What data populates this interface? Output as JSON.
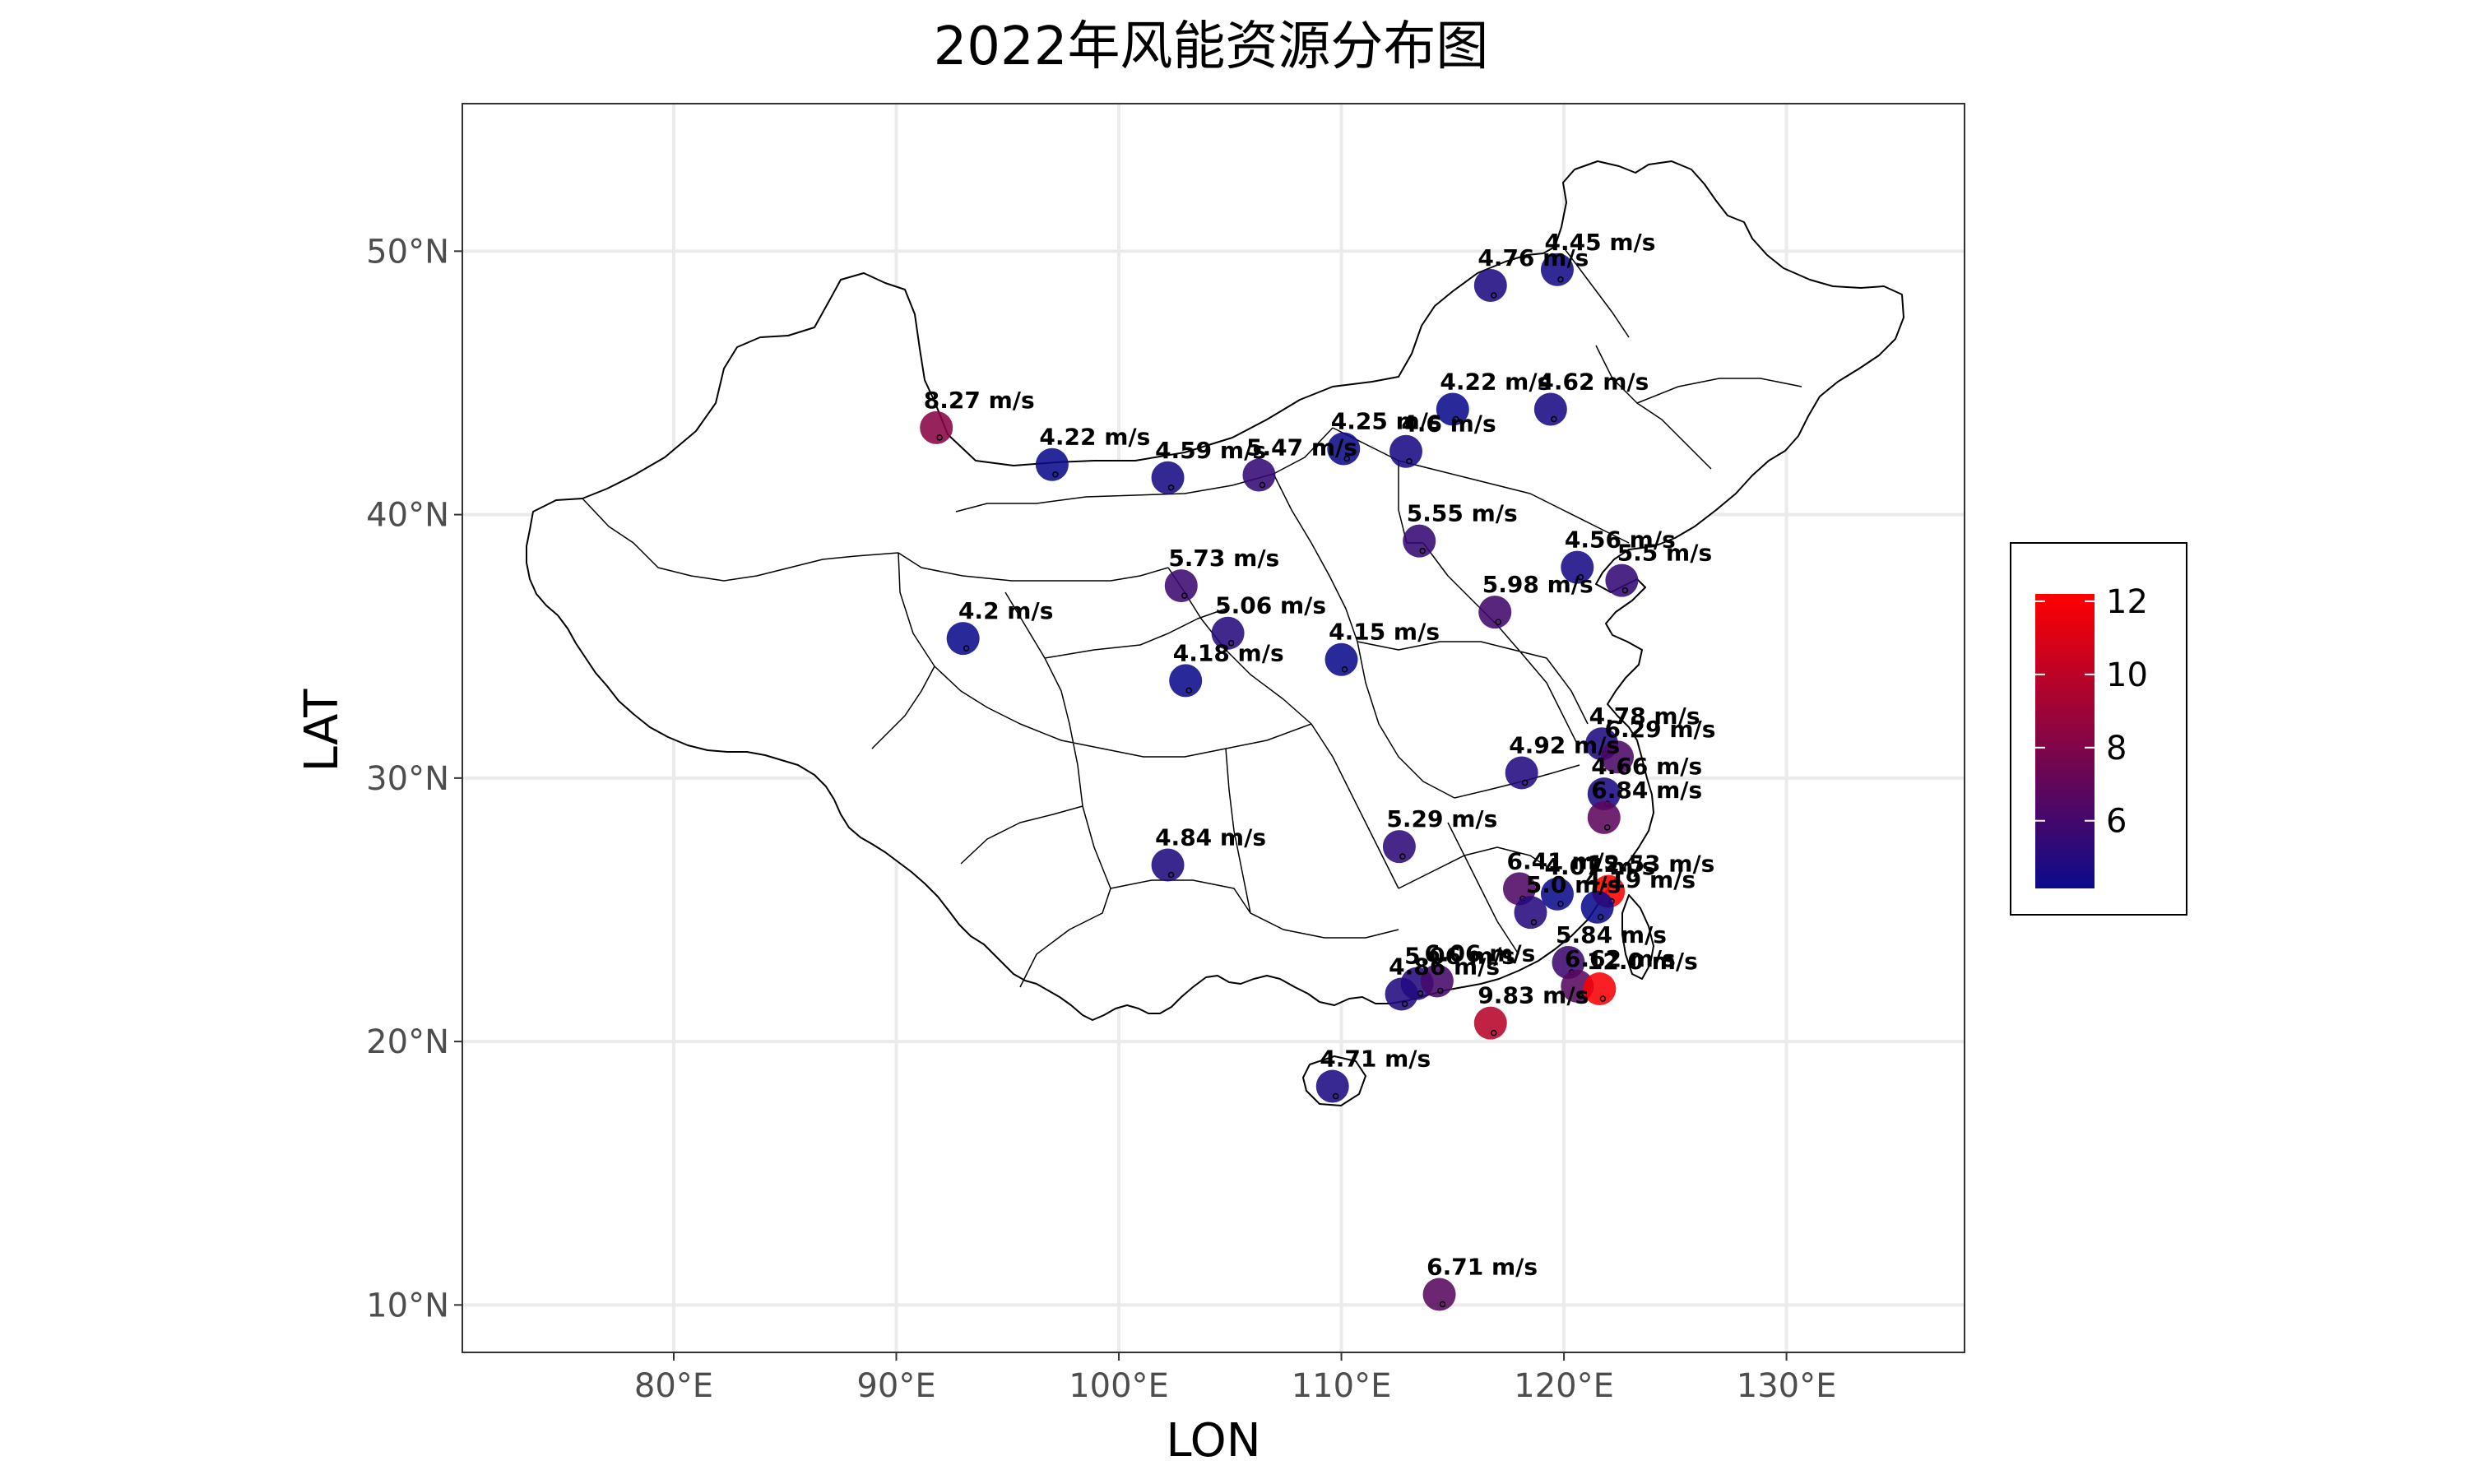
{
  "title": "2022年风能资源分布图",
  "axes": {
    "xlabel": "LON",
    "ylabel": "LAT",
    "x_ticks": [
      {
        "value": 80,
        "label": "80°E"
      },
      {
        "value": 90,
        "label": "90°E"
      },
      {
        "value": 100,
        "label": "100°E"
      },
      {
        "value": 110,
        "label": "110°E"
      },
      {
        "value": 120,
        "label": "120°E"
      },
      {
        "value": 130,
        "label": "130°E"
      }
    ],
    "y_ticks": [
      {
        "value": 10,
        "label": "10°N"
      },
      {
        "value": 20,
        "label": "20°N"
      },
      {
        "value": 30,
        "label": "30°N"
      },
      {
        "value": 40,
        "label": "40°N"
      },
      {
        "value": 50,
        "label": "50°N"
      }
    ],
    "xlim": [
      70.5,
      138
    ],
    "ylim": [
      8.2,
      55.6
    ],
    "grid": true
  },
  "legend": {
    "position": "right",
    "type": "colorbar",
    "range": [
      4.15,
      12.2
    ],
    "low_color": "#0b0b8c",
    "high_color": "#ff0000",
    "ticks": [
      {
        "value": 6,
        "label": "6"
      },
      {
        "value": 8,
        "label": "8"
      },
      {
        "value": 10,
        "label": "10"
      },
      {
        "value": 12,
        "label": "12"
      }
    ]
  },
  "unit": "m/s",
  "chart_data": {
    "type": "scatter",
    "x_field": "LON",
    "y_field": "LAT",
    "color_field": "wind_speed",
    "points": [
      {
        "lon": 91.8,
        "lat": 43.3,
        "value": 8.27,
        "label": "8.27  m/s"
      },
      {
        "lon": 97.0,
        "lat": 41.9,
        "value": 4.22,
        "label": "4.22  m/s"
      },
      {
        "lon": 102.2,
        "lat": 41.4,
        "value": 4.59,
        "label": "4.59  m/s"
      },
      {
        "lon": 106.3,
        "lat": 41.5,
        "value": 5.47,
        "label": "5.47  m/s"
      },
      {
        "lon": 110.1,
        "lat": 42.5,
        "value": 4.25,
        "label": "4.25  m/s"
      },
      {
        "lon": 112.9,
        "lat": 42.4,
        "value": 4.6,
        "label": "4.6  m/s"
      },
      {
        "lon": 115.0,
        "lat": 44.0,
        "value": 4.22,
        "label": "4.22  m/s"
      },
      {
        "lon": 119.4,
        "lat": 44.0,
        "value": 4.62,
        "label": "4.62  m/s"
      },
      {
        "lon": 116.7,
        "lat": 48.7,
        "value": 4.76,
        "label": "4.76  m/s"
      },
      {
        "lon": 119.7,
        "lat": 49.3,
        "value": 4.45,
        "label": "4.45  m/s"
      },
      {
        "lon": 113.5,
        "lat": 39.0,
        "value": 5.55,
        "label": "5.55  m/s"
      },
      {
        "lon": 102.8,
        "lat": 37.3,
        "value": 5.73,
        "label": "5.73  m/s"
      },
      {
        "lon": 104.9,
        "lat": 35.5,
        "value": 5.06,
        "label": "5.06  m/s"
      },
      {
        "lon": 93.0,
        "lat": 35.3,
        "value": 4.2,
        "label": "4.2  m/s"
      },
      {
        "lon": 103.0,
        "lat": 33.7,
        "value": 4.18,
        "label": "4.18  m/s"
      },
      {
        "lon": 110.0,
        "lat": 34.5,
        "value": 4.15,
        "label": "4.15  m/s"
      },
      {
        "lon": 116.9,
        "lat": 36.3,
        "value": 5.98,
        "label": "5.98  m/s"
      },
      {
        "lon": 120.6,
        "lat": 38.0,
        "value": 4.56,
        "label": "4.56  m/s"
      },
      {
        "lon": 122.6,
        "lat": 37.5,
        "value": 5.5,
        "label": "5.5  m/s"
      },
      {
        "lon": 121.7,
        "lat": 31.3,
        "value": 4.78,
        "label": "4.78  m/s"
      },
      {
        "lon": 122.4,
        "lat": 30.8,
        "value": 6.29,
        "label": "6.29  m/s"
      },
      {
        "lon": 118.1,
        "lat": 30.2,
        "value": 4.92,
        "label": "4.92  m/s"
      },
      {
        "lon": 121.8,
        "lat": 29.4,
        "value": 4.66,
        "label": "4.66  m/s"
      },
      {
        "lon": 121.8,
        "lat": 28.5,
        "value": 6.84,
        "label": "6.84  m/s"
      },
      {
        "lon": 112.6,
        "lat": 27.4,
        "value": 5.29,
        "label": "5.29  m/s"
      },
      {
        "lon": 102.2,
        "lat": 26.7,
        "value": 4.84,
        "label": "4.84  m/s"
      },
      {
        "lon": 118.0,
        "lat": 25.8,
        "value": 6.41,
        "label": "6.41  m/s"
      },
      {
        "lon": 119.7,
        "lat": 25.6,
        "value": 4.07,
        "label": "4.07  m/s"
      },
      {
        "lon": 122.0,
        "lat": 25.7,
        "value": 12.53,
        "label": "12.53  m/s"
      },
      {
        "lon": 121.5,
        "lat": 25.1,
        "value": 4.19,
        "label": "4.19  m/s"
      },
      {
        "lon": 118.5,
        "lat": 24.9,
        "value": 5.0,
        "label": "5.0  m/s"
      },
      {
        "lon": 120.2,
        "lat": 23.0,
        "value": 5.84,
        "label": "5.84  m/s"
      },
      {
        "lon": 120.6,
        "lat": 22.1,
        "value": 6.62,
        "label": "6.62  m/s"
      },
      {
        "lon": 121.6,
        "lat": 22.0,
        "value": 12.0,
        "label": "12.0  m/s"
      },
      {
        "lon": 113.4,
        "lat": 22.2,
        "value": 5.06,
        "label": "5.06  m/s"
      },
      {
        "lon": 114.3,
        "lat": 22.3,
        "value": 6.06,
        "label": "6.06  m/s"
      },
      {
        "lon": 112.7,
        "lat": 21.8,
        "value": 4.86,
        "label": "4.86  m/s"
      },
      {
        "lon": 116.7,
        "lat": 20.7,
        "value": 9.83,
        "label": "9.83  m/s"
      },
      {
        "lon": 109.6,
        "lat": 18.3,
        "value": 4.71,
        "label": "4.71  m/s"
      },
      {
        "lon": 114.4,
        "lat": 10.4,
        "value": 6.71,
        "label": "6.71  m/s"
      }
    ]
  }
}
